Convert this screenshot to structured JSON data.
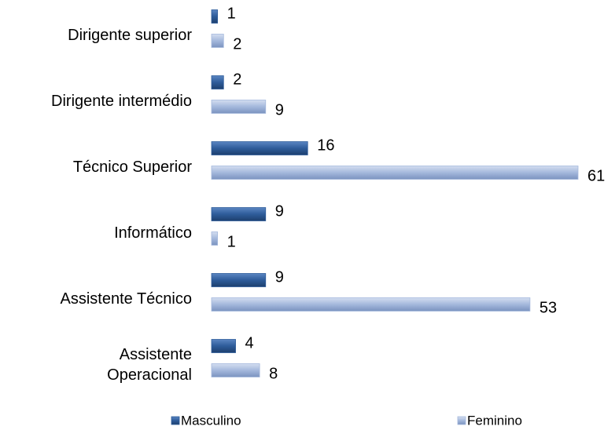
{
  "chart_data": {
    "type": "bar",
    "orientation": "horizontal",
    "categories": [
      "Dirigente superior",
      "Dirigente intermédio",
      "Técnico Superior",
      "Informático",
      "Assistente Técnico",
      "Assistente\nOperacional"
    ],
    "series": [
      {
        "name": "Masculino",
        "color": "#2e5c9a",
        "values": [
          1,
          2,
          16,
          9,
          9,
          4
        ]
      },
      {
        "name": "Feminino",
        "color": "#a4b8dc",
        "values": [
          2,
          9,
          61,
          1,
          53,
          8
        ]
      }
    ],
    "legend": "bottom"
  }
}
